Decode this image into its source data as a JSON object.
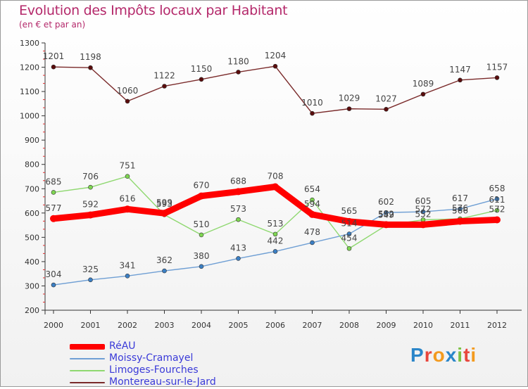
{
  "chart_data": {
    "type": "line",
    "title": "Evolution des Impôts locaux par Habitant",
    "subtitle": "(en € et par an)",
    "xlabel": "",
    "ylabel": "",
    "ylim": [
      200,
      1300
    ],
    "yticks": [
      "200",
      "300",
      "400",
      "500",
      "600",
      "700",
      "800",
      "900",
      "1000",
      "1100",
      "1200",
      "1300"
    ],
    "categories": [
      "2000",
      "2001",
      "2002",
      "2003",
      "2004",
      "2005",
      "2006",
      "2007",
      "2008",
      "2009",
      "2010",
      "2011",
      "2012"
    ],
    "series": [
      {
        "name": "Montereau-sur-le-Jard",
        "color": "#7a2a2a",
        "marker": "#5a0c0c",
        "values": [
          1201,
          1198,
          1060,
          1122,
          1150,
          1180,
          1204,
          1010,
          1029,
          1027,
          1089,
          1147,
          1157
        ]
      },
      {
        "name": "Moissy-Cramayel",
        "color": "#6f9fd4",
        "marker": "#3b7fc4",
        "values": [
          304,
          325,
          341,
          362,
          380,
          413,
          442,
          478,
          514,
          602,
          605,
          617,
          658
        ]
      },
      {
        "name": "Limoges-Fourches",
        "color": "#8fd870",
        "marker": "#7ed651",
        "values": [
          685,
          706,
          751,
          593,
          510,
          573,
          513,
          654,
          454,
          549,
          572,
          576,
          611
        ]
      },
      {
        "name": "RéAU",
        "color": "#ff0000",
        "marker": "#ff0000",
        "values": [
          577,
          592,
          616,
          599,
          670,
          688,
          708,
          594,
          565,
          552,
          552,
          566,
          572
        ]
      }
    ],
    "legend_position": "bottom-left",
    "grid": false
  },
  "legend": {
    "items": [
      {
        "label": "RéAU",
        "color": "#ff0000"
      },
      {
        "label": "Moissy-Cramayel",
        "color": "#6f9fd4"
      },
      {
        "label": "Limoges-Fourches",
        "color": "#8fd870"
      },
      {
        "label": "Montereau-sur-le-Jard",
        "color": "#7a2a2a"
      }
    ]
  },
  "logo": {
    "letters": [
      "P",
      "r",
      "o",
      "x",
      "i",
      "t",
      "i"
    ],
    "colors": [
      "#2b86c9",
      "#e8463c",
      "#f39a1e",
      "#2b86c9",
      "#7cc142",
      "#e8463c",
      "#f39a1e"
    ]
  }
}
